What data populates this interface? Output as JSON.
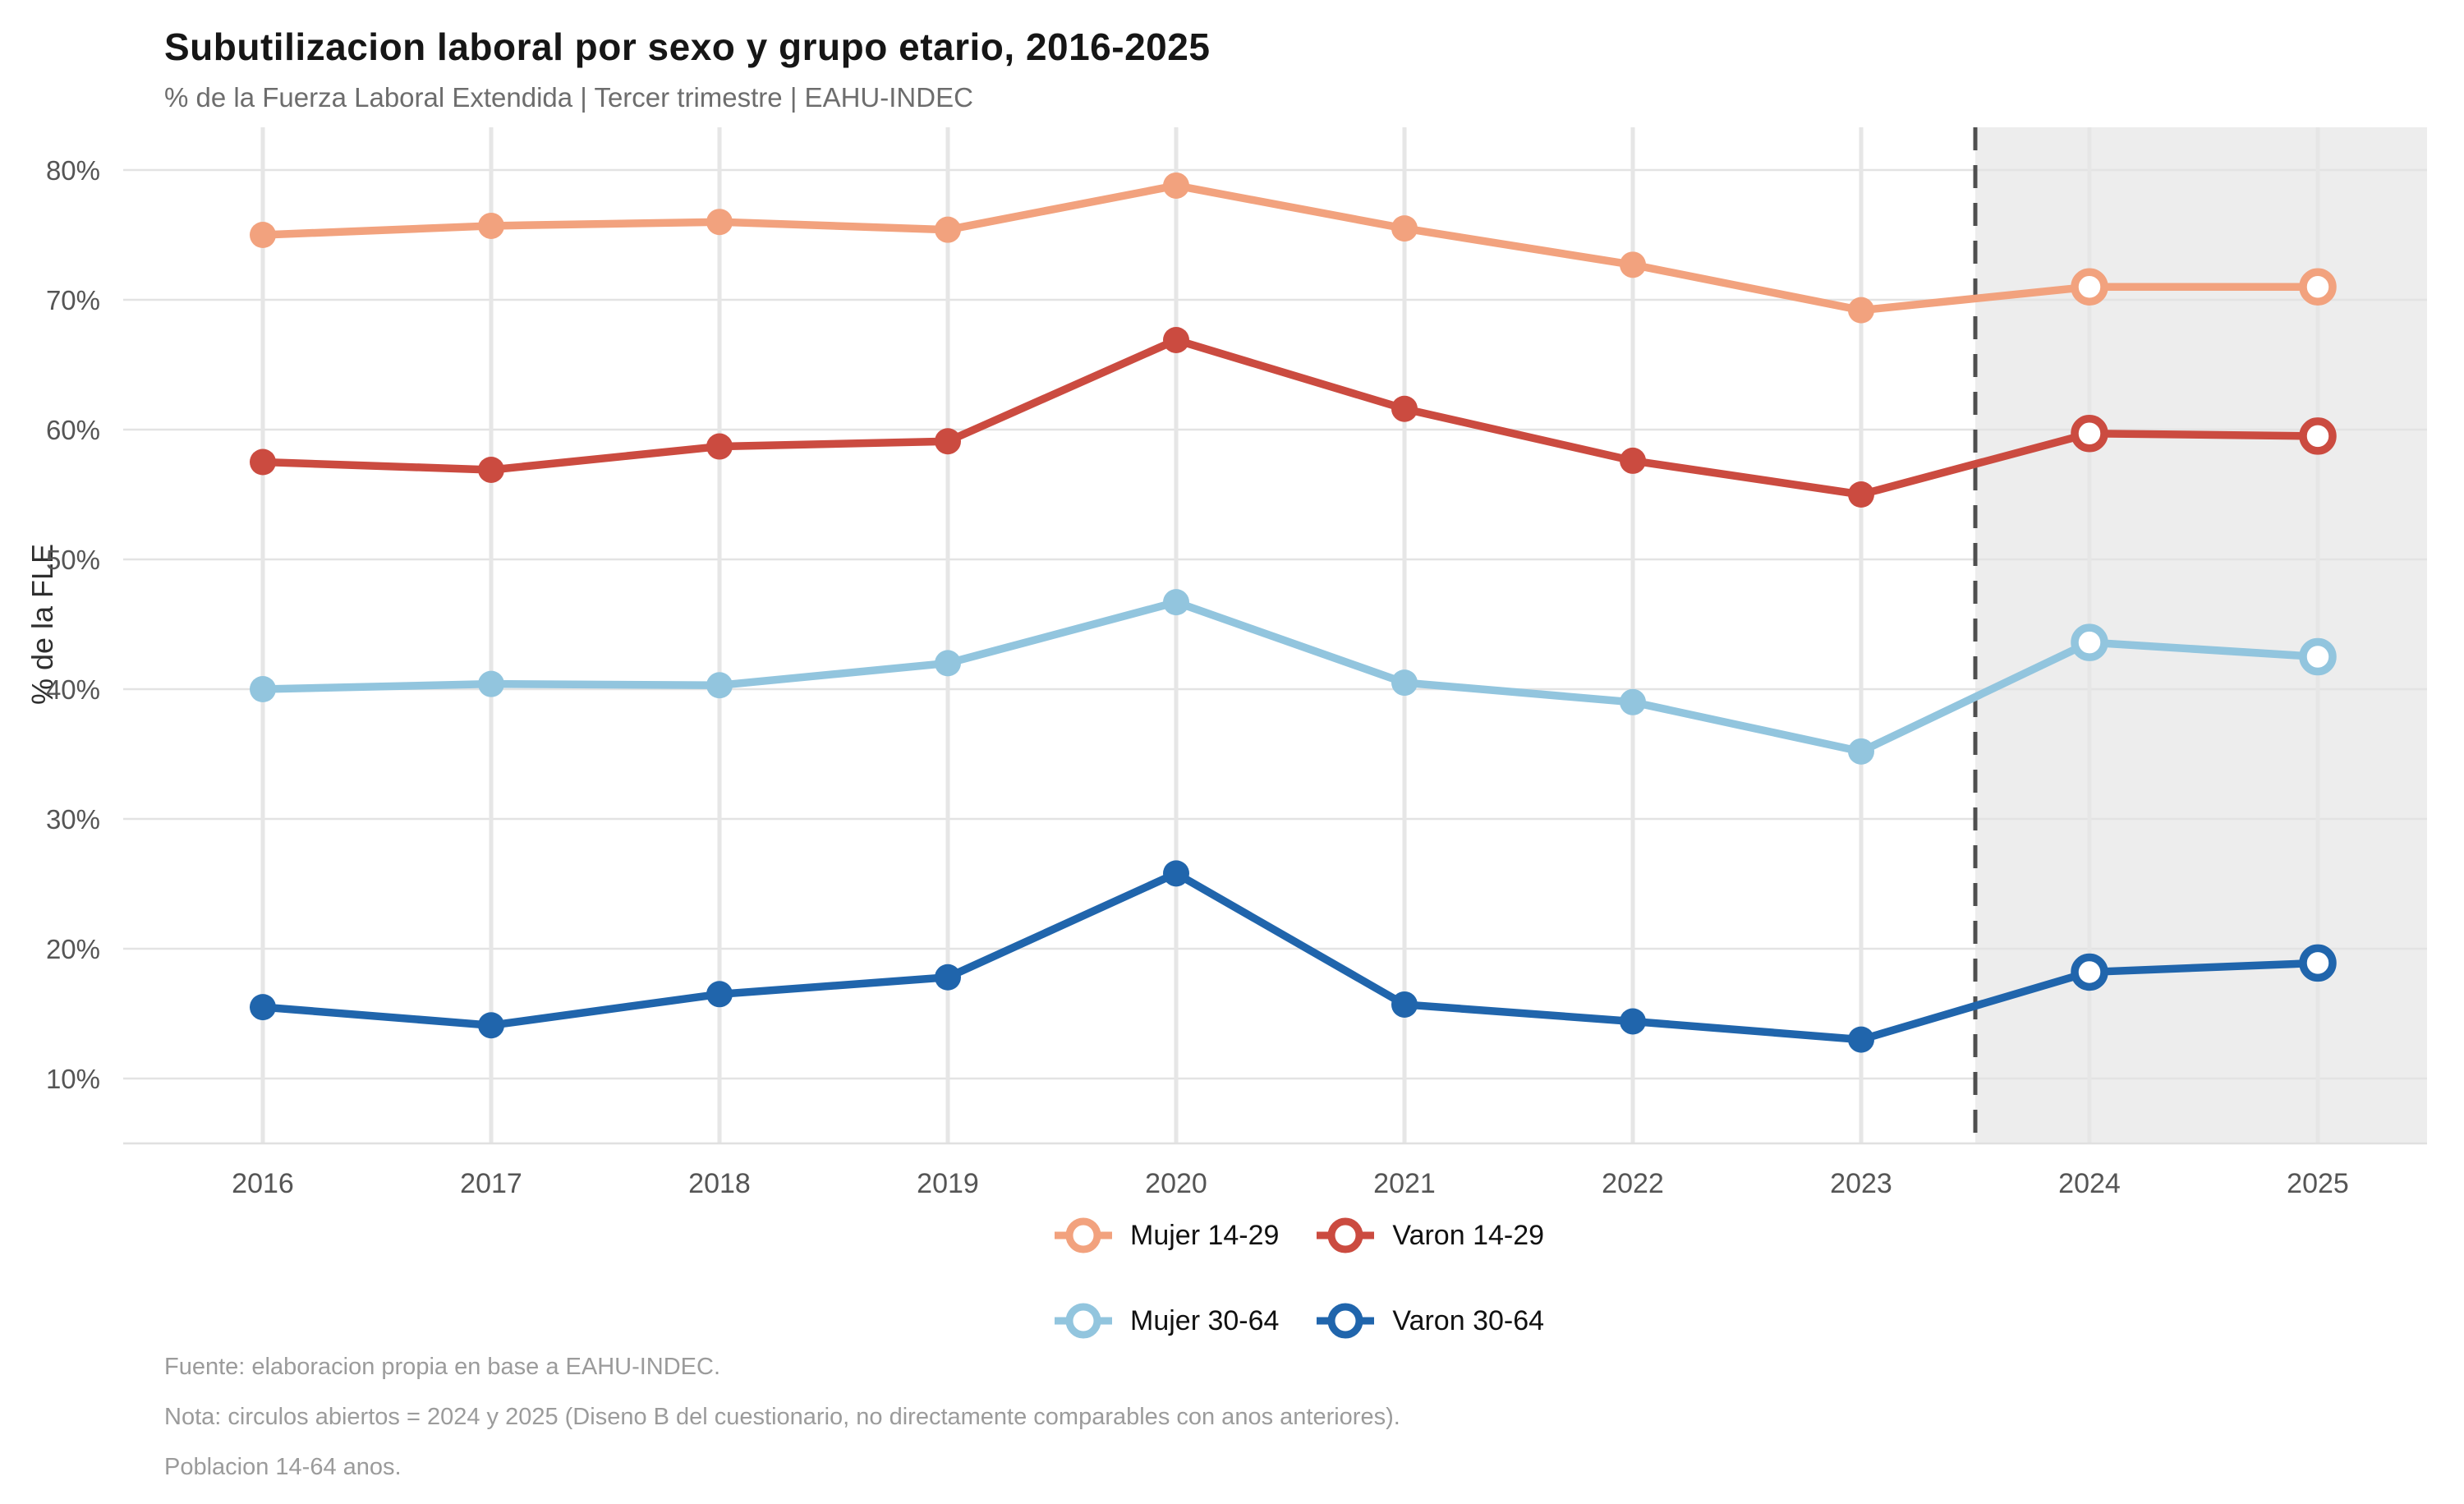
{
  "chart_data": {
    "type": "line",
    "title": "Subutilizacion laboral por sexo y grupo etario, 2016-2025",
    "subtitle": "% de la Fuerza Laboral Extendida | Tercer trimestre | EAHU-INDEC",
    "ylabel": "% de la FLE",
    "xlabel": "",
    "x": [
      2016,
      2017,
      2018,
      2019,
      2020,
      2021,
      2022,
      2023,
      2024,
      2025
    ],
    "series": [
      {
        "name": "Mujer 14-29",
        "color": "#F2A27E",
        "values": [
          75.0,
          75.7,
          76.0,
          75.4,
          78.8,
          75.5,
          72.7,
          69.2,
          71.0,
          71.0
        ]
      },
      {
        "name": "Varon 14-29",
        "color": "#CB4B40",
        "values": [
          57.5,
          56.9,
          58.7,
          59.1,
          66.9,
          61.6,
          57.6,
          55.0,
          59.7,
          59.5
        ]
      },
      {
        "name": "Mujer 30-64",
        "color": "#92C5DE",
        "values": [
          40.0,
          40.4,
          40.3,
          42.0,
          46.7,
          40.5,
          39.0,
          35.2,
          43.6,
          42.5
        ]
      },
      {
        "name": "Varon 30-64",
        "color": "#2065AC",
        "values": [
          15.5,
          14.1,
          16.5,
          17.8,
          25.8,
          15.7,
          14.4,
          13.0,
          18.2,
          18.9
        ]
      }
    ],
    "yticks": [
      10,
      20,
      30,
      40,
      50,
      60,
      70,
      80
    ],
    "ytick_suffix": "%",
    "ylim": [
      6,
      83.5
    ],
    "grid": true,
    "legend_position": "bottom-center",
    "open_markers_from_x": 2024,
    "dashed_divider_x": 2023.5,
    "shaded_region": {
      "from_x": 2023.5,
      "to_x": "end",
      "color": "#EDEDED"
    }
  },
  "footnotes": [
    "Fuente: elaboracion propia en base a EAHU-INDEC.",
    "Nota: circulos abiertos = 2024 y 2025 (Diseno B del cuestionario, no directamente comparables con anos anteriores).",
    "Poblacion 14-64 anos."
  ]
}
